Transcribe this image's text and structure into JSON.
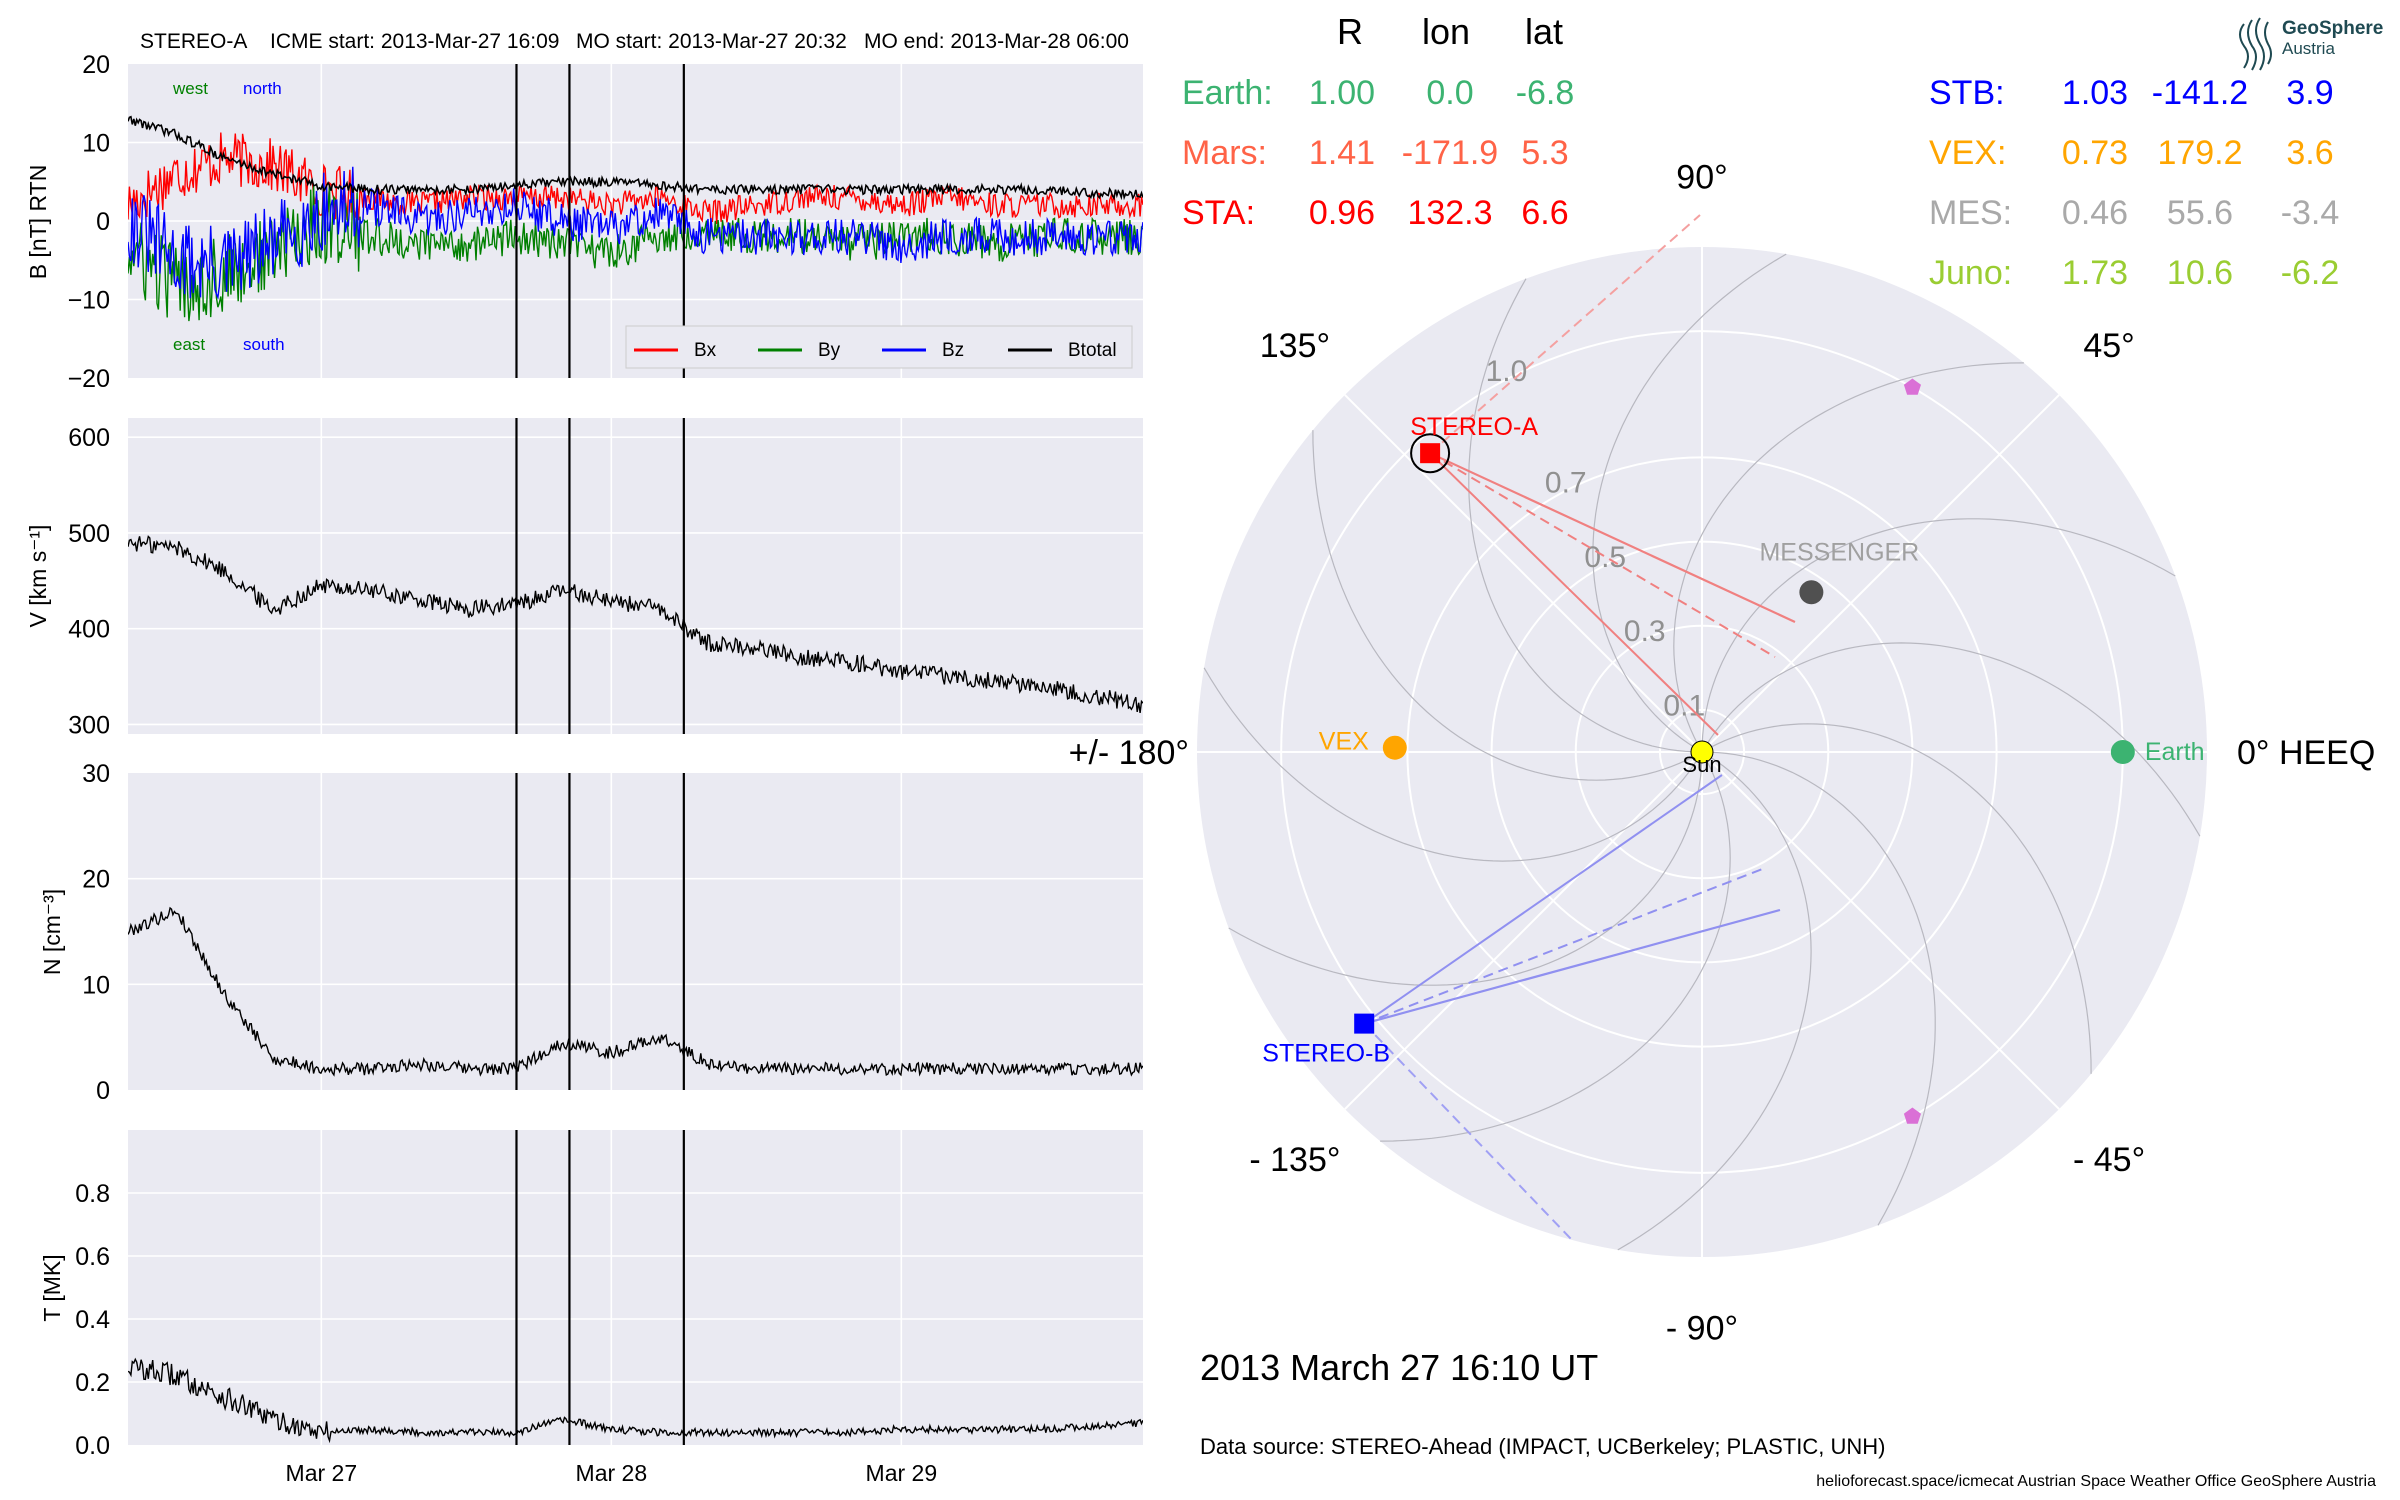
{
  "header": {
    "spacecraft": "STEREO-A",
    "icme_start": "ICME start: 2013-Mar-27 16:09",
    "mo_start": "MO start: 2013-Mar-27 20:32",
    "mo_end": "MO end: 2013-Mar-28 06:00"
  },
  "logo": {
    "name": "GeoSphere",
    "sub": "Austria"
  },
  "timestamp": "2013 March 27  16:10 UT",
  "data_source": "Data source: STEREO-Ahead (IMPACT, UCBerkeley; PLASTIC, UNH)",
  "credits": "helioforecast.space/icmecat   Austrian Space Weather Office   GeoSphere Austria",
  "colors": {
    "panel_bg": "#eaeaf2",
    "grid": "#ffffff",
    "bx": "#ff0000",
    "by": "#008000",
    "bz": "#0000ff",
    "btotal": "#000000",
    "earth": "#3cb371",
    "mars": "#ff6347",
    "sta": "#ff0000",
    "stb": "#0000ff",
    "vex": "#ffa500",
    "mes": "#a9a9a9",
    "juno": "#9acd32"
  },
  "position_table": {
    "headers": [
      "R",
      "lon",
      "lat"
    ],
    "left": [
      {
        "name": "Earth:",
        "r": "1.00",
        "lon": "0.0",
        "lat": "-6.8",
        "color": "#3cb371"
      },
      {
        "name": "Mars:",
        "r": "1.41",
        "lon": "-171.9",
        "lat": "5.3",
        "color": "#ff6347"
      },
      {
        "name": "STA:",
        "r": "0.96",
        "lon": "132.3",
        "lat": "6.6",
        "color": "#ff0000"
      }
    ],
    "right": [
      {
        "name": "STB:",
        "r": "1.03",
        "lon": "-141.2",
        "lat": "3.9",
        "color": "#0000ff"
      },
      {
        "name": "VEX:",
        "r": "0.73",
        "lon": "179.2",
        "lat": "3.6",
        "color": "#ffa500"
      },
      {
        "name": "MES:",
        "r": "0.46",
        "lon": "55.6",
        "lat": "-3.4",
        "color": "#a9a9a9"
      },
      {
        "name": "Juno:",
        "r": "1.73",
        "lon": "10.6",
        "lat": "-6.2",
        "color": "#9acd32"
      }
    ]
  },
  "chart_data": [
    {
      "type": "line",
      "panel": "magnetic_field",
      "ylabel": "B [nT] RTN",
      "ylim": [
        -20,
        20
      ],
      "yticks": [
        -20,
        -10,
        0,
        10,
        20
      ],
      "ytick_labels": [
        "−20",
        "−10",
        "0",
        "10",
        "20"
      ],
      "xlim": [
        "2013-03-26 08:00",
        "2013-03-29 20:00"
      ],
      "xticks": [
        "2013-03-27",
        "2013-03-28",
        "2013-03-29"
      ],
      "xtick_labels": [
        "Mar 27",
        "Mar 28",
        "Mar 29"
      ],
      "annotations": [
        {
          "text": "west",
          "color": "#008000"
        },
        {
          "text": "north",
          "color": "#0000ff"
        },
        {
          "text": "east",
          "color": "#008000"
        },
        {
          "text": "south",
          "color": "#0000ff"
        }
      ],
      "legend": {
        "placement": "lower-right",
        "entries": [
          "Bx",
          "By",
          "Bz",
          "Btotal"
        ]
      },
      "series": [
        {
          "name": "Bx",
          "color": "#ff0000",
          "x": [
            "2013-03-26 08:00",
            "2013-03-26 12:00",
            "2013-03-26 16:00",
            "2013-03-26 20:00",
            "2013-03-27 00:00",
            "2013-03-27 04:00",
            "2013-03-27 08:00",
            "2013-03-27 12:00",
            "2013-03-27 16:00",
            "2013-03-27 20:00",
            "2013-03-28 00:00",
            "2013-03-28 04:00",
            "2013-03-28 08:00",
            "2013-03-28 12:00",
            "2013-03-28 16:00",
            "2013-03-28 20:00",
            "2013-03-29 00:00",
            "2013-03-29 04:00",
            "2013-03-29 08:00",
            "2013-03-29 12:00",
            "2013-03-29 16:00",
            "2013-03-29 20:00"
          ],
          "values": [
            2,
            6,
            8,
            7,
            4,
            3,
            2,
            3,
            3,
            3,
            2,
            3,
            1,
            2,
            3,
            3,
            2,
            3,
            2,
            2,
            2,
            2
          ]
        },
        {
          "name": "By",
          "color": "#008000",
          "x": [
            "2013-03-26 08:00",
            "2013-03-26 12:00",
            "2013-03-26 16:00",
            "2013-03-26 20:00",
            "2013-03-27 00:00",
            "2013-03-27 04:00",
            "2013-03-27 08:00",
            "2013-03-27 12:00",
            "2013-03-27 16:00",
            "2013-03-27 20:00",
            "2013-03-28 00:00",
            "2013-03-28 04:00",
            "2013-03-28 08:00",
            "2013-03-28 12:00",
            "2013-03-28 16:00",
            "2013-03-28 20:00",
            "2013-03-29 00:00",
            "2013-03-29 04:00",
            "2013-03-29 08:00",
            "2013-03-29 12:00",
            "2013-03-29 16:00",
            "2013-03-29 20:00"
          ],
          "values": [
            -4,
            -8,
            -7,
            -4,
            0,
            -2,
            -3,
            -3,
            -2,
            -3,
            -4,
            -2,
            -1,
            -2,
            -2,
            -3,
            -2,
            -2,
            -3,
            -2,
            -2,
            -2
          ]
        },
        {
          "name": "Bz",
          "color": "#0000ff",
          "x": [
            "2013-03-26 08:00",
            "2013-03-26 12:00",
            "2013-03-26 16:00",
            "2013-03-26 20:00",
            "2013-03-27 00:00",
            "2013-03-27 04:00",
            "2013-03-27 08:00",
            "2013-03-27 12:00",
            "2013-03-27 16:00",
            "2013-03-27 20:00",
            "2013-03-28 00:00",
            "2013-03-28 04:00",
            "2013-03-28 08:00",
            "2013-03-28 12:00",
            "2013-03-28 16:00",
            "2013-03-28 20:00",
            "2013-03-29 00:00",
            "2013-03-29 04:00",
            "2013-03-29 08:00",
            "2013-03-29 12:00",
            "2013-03-29 16:00",
            "2013-03-29 20:00"
          ],
          "values": [
            0,
            -5,
            -6,
            -3,
            1,
            2,
            0,
            1,
            2,
            0,
            -1,
            1,
            -2,
            -2,
            -2,
            -2,
            -3,
            -2,
            -2,
            -2,
            -2,
            -2
          ]
        },
        {
          "name": "Btotal",
          "color": "#000000",
          "x": [
            "2013-03-26 08:00",
            "2013-03-26 12:00",
            "2013-03-26 16:00",
            "2013-03-26 20:00",
            "2013-03-27 00:00",
            "2013-03-27 04:00",
            "2013-03-27 08:00",
            "2013-03-27 12:00",
            "2013-03-27 16:00",
            "2013-03-27 20:00",
            "2013-03-28 00:00",
            "2013-03-28 04:00",
            "2013-03-28 08:00",
            "2013-03-28 12:00",
            "2013-03-28 16:00",
            "2013-03-28 20:00",
            "2013-03-29 00:00",
            "2013-03-29 04:00",
            "2013-03-29 08:00",
            "2013-03-29 12:00",
            "2013-03-29 16:00",
            "2013-03-29 20:00"
          ],
          "values": [
            13,
            11,
            8,
            6,
            4.5,
            4,
            4,
            4,
            4.5,
            5,
            5,
            4.5,
            4,
            4,
            4,
            4,
            4,
            4,
            4,
            4,
            3.5,
            3.5
          ]
        }
      ],
      "event_lines": [
        "2013-03-27 16:09",
        "2013-03-27 20:32",
        "2013-03-28 06:00"
      ]
    },
    {
      "type": "line",
      "panel": "speed",
      "ylabel": "V [km s⁻¹]",
      "ylim": [
        290,
        620
      ],
      "yticks": [
        300,
        400,
        500,
        600
      ],
      "ytick_labels": [
        "300",
        "400",
        "500",
        "600"
      ],
      "xticks": [
        "2013-03-27",
        "2013-03-28",
        "2013-03-29"
      ],
      "series": [
        {
          "name": "",
          "color": "#000000",
          "x": [
            "2013-03-26 08:00",
            "2013-03-26 12:00",
            "2013-03-26 16:00",
            "2013-03-26 20:00",
            "2013-03-27 00:00",
            "2013-03-27 04:00",
            "2013-03-27 08:00",
            "2013-03-27 12:00",
            "2013-03-27 16:00",
            "2013-03-27 20:00",
            "2013-03-28 00:00",
            "2013-03-28 04:00",
            "2013-03-28 08:00",
            "2013-03-28 12:00",
            "2013-03-28 16:00",
            "2013-03-28 20:00",
            "2013-03-29 00:00",
            "2013-03-29 04:00",
            "2013-03-29 08:00",
            "2013-03-29 12:00",
            "2013-03-29 16:00",
            "2013-03-29 20:00"
          ],
          "values": [
            490,
            485,
            460,
            420,
            445,
            440,
            430,
            420,
            425,
            440,
            430,
            420,
            385,
            380,
            370,
            365,
            355,
            350,
            345,
            340,
            330,
            320
          ]
        }
      ],
      "event_lines": [
        "2013-03-27 16:09",
        "2013-03-27 20:32",
        "2013-03-28 06:00"
      ]
    },
    {
      "type": "line",
      "panel": "density",
      "ylabel": "N [cm⁻³]",
      "ylim": [
        0,
        30
      ],
      "yticks": [
        0,
        10,
        20,
        30
      ],
      "ytick_labels": [
        "0",
        "10",
        "20",
        "30"
      ],
      "xticks": [
        "2013-03-27",
        "2013-03-28",
        "2013-03-29"
      ],
      "series": [
        {
          "name": "",
          "color": "#000000",
          "x": [
            "2013-03-26 08:00",
            "2013-03-26 12:00",
            "2013-03-26 16:00",
            "2013-03-26 20:00",
            "2013-03-27 00:00",
            "2013-03-27 04:00",
            "2013-03-27 08:00",
            "2013-03-27 12:00",
            "2013-03-27 16:00",
            "2013-03-27 20:00",
            "2013-03-28 00:00",
            "2013-03-28 04:00",
            "2013-03-28 08:00",
            "2013-03-28 12:00",
            "2013-03-28 16:00",
            "2013-03-28 20:00",
            "2013-03-29 00:00",
            "2013-03-29 04:00",
            "2013-03-29 08:00",
            "2013-03-29 12:00",
            "2013-03-29 16:00",
            "2013-03-29 20:00"
          ],
          "values": [
            15,
            17,
            9,
            3,
            2,
            2,
            2.5,
            2,
            2,
            4.5,
            3.5,
            5,
            2.5,
            2,
            2,
            2,
            2,
            2,
            2,
            2,
            2,
            2
          ]
        }
      ],
      "event_lines": [
        "2013-03-27 16:09",
        "2013-03-27 20:32",
        "2013-03-28 06:00"
      ]
    },
    {
      "type": "line",
      "panel": "temperature",
      "ylabel": "T [MK]",
      "ylim": [
        0,
        1.0
      ],
      "yticks": [
        0.0,
        0.2,
        0.4,
        0.6,
        0.8
      ],
      "ytick_labels": [
        "0.0",
        "0.2",
        "0.4",
        "0.6",
        "0.8"
      ],
      "xticks": [
        "2013-03-27",
        "2013-03-28",
        "2013-03-29"
      ],
      "xtick_labels": [
        "Mar 27",
        "Mar 28",
        "Mar 29"
      ],
      "series": [
        {
          "name": "",
          "color": "#000000",
          "x": [
            "2013-03-26 08:00",
            "2013-03-26 12:00",
            "2013-03-26 16:00",
            "2013-03-26 20:00",
            "2013-03-27 00:00",
            "2013-03-27 04:00",
            "2013-03-27 08:00",
            "2013-03-27 12:00",
            "2013-03-27 16:00",
            "2013-03-27 20:00",
            "2013-03-28 00:00",
            "2013-03-28 04:00",
            "2013-03-28 08:00",
            "2013-03-28 12:00",
            "2013-03-28 16:00",
            "2013-03-28 20:00",
            "2013-03-29 00:00",
            "2013-03-29 04:00",
            "2013-03-29 08:00",
            "2013-03-29 12:00",
            "2013-03-29 16:00",
            "2013-03-29 20:00"
          ],
          "values": [
            0.25,
            0.22,
            0.15,
            0.08,
            0.04,
            0.05,
            0.04,
            0.04,
            0.04,
            0.08,
            0.05,
            0.04,
            0.04,
            0.04,
            0.04,
            0.04,
            0.05,
            0.05,
            0.05,
            0.05,
            0.06,
            0.07
          ]
        }
      ],
      "event_lines": [
        "2013-03-27 16:09",
        "2013-03-27 20:32",
        "2013-03-28 06:00"
      ]
    },
    {
      "type": "scatter",
      "panel": "polar_position_map",
      "theta_labels": [
        "0° HEEQ",
        "45°",
        "90°",
        "135°",
        "+/- 180°",
        "- 135°",
        "- 90°",
        "- 45°"
      ],
      "theta_label_angles": [
        0,
        45,
        90,
        135,
        180,
        -135,
        -90,
        -45
      ],
      "r_tick_labels": [
        "0.1",
        "0.3",
        "0.5",
        "0.7",
        "1.0"
      ],
      "r_ticks": [
        0.1,
        0.3,
        0.5,
        0.7,
        1.0
      ],
      "rlim": [
        0,
        1.2
      ],
      "points": [
        {
          "label": "Sun",
          "r": 0.0,
          "lon": 0,
          "color": "#ffff00",
          "marker": "circle"
        },
        {
          "label": "Earth",
          "r": 1.0,
          "lon": 0.0,
          "color": "#3cb371",
          "marker": "circle"
        },
        {
          "label": "VEX",
          "r": 0.73,
          "lon": 179.2,
          "color": "#ffa500",
          "marker": "circle"
        },
        {
          "label": "MESSENGER",
          "r": 0.46,
          "lon": 55.6,
          "color": "#505050",
          "marker": "circle"
        },
        {
          "label": "STEREO-A",
          "r": 0.96,
          "lon": 132.3,
          "color": "#ff0000",
          "marker": "square"
        },
        {
          "label": "STEREO-B",
          "r": 1.03,
          "lon": -141.2,
          "color": "#0000ff",
          "marker": "square"
        },
        {
          "label": "",
          "r": 1.0,
          "lon": 60,
          "color": "#da70d6",
          "marker": "pentagon"
        },
        {
          "label": "",
          "r": 1.0,
          "lon": -60,
          "color": "#da70d6",
          "marker": "pentagon"
        }
      ]
    }
  ]
}
